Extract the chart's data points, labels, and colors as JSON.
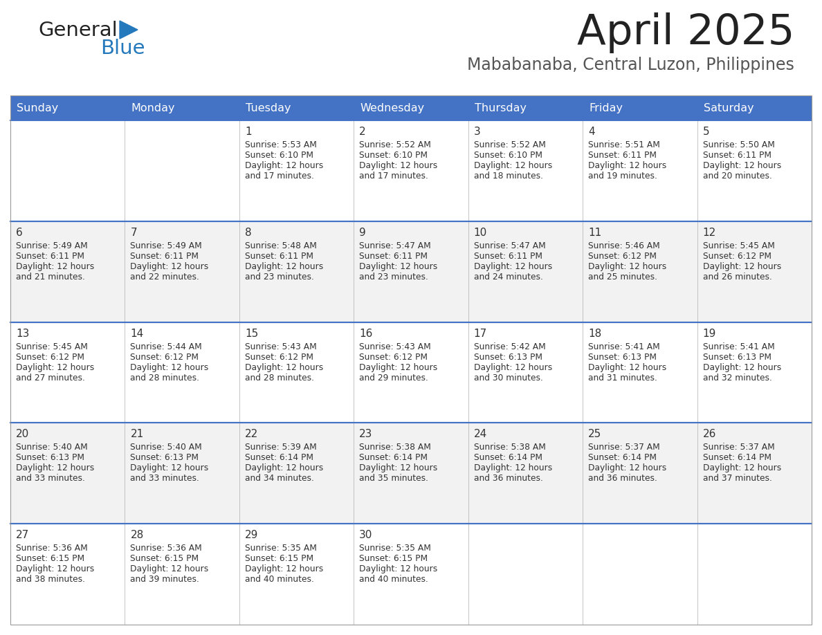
{
  "title": "April 2025",
  "subtitle": "Mababanaba, Central Luzon, Philippines",
  "header_bg": "#4472C4",
  "header_text_color": "#FFFFFF",
  "weekdays": [
    "Sunday",
    "Monday",
    "Tuesday",
    "Wednesday",
    "Thursday",
    "Friday",
    "Saturday"
  ],
  "row_bg_even": "#FFFFFF",
  "row_bg_odd": "#F2F2F2",
  "cell_text_color": "#333333",
  "divider_color": "#4472C4",
  "calendar_data": [
    [
      {
        "day": "",
        "sunrise": "",
        "sunset": "",
        "daylight": ""
      },
      {
        "day": "",
        "sunrise": "",
        "sunset": "",
        "daylight": ""
      },
      {
        "day": "1",
        "sunrise": "Sunrise: 5:53 AM",
        "sunset": "Sunset: 6:10 PM",
        "daylight": "Daylight: 12 hours\nand 17 minutes."
      },
      {
        "day": "2",
        "sunrise": "Sunrise: 5:52 AM",
        "sunset": "Sunset: 6:10 PM",
        "daylight": "Daylight: 12 hours\nand 17 minutes."
      },
      {
        "day": "3",
        "sunrise": "Sunrise: 5:52 AM",
        "sunset": "Sunset: 6:10 PM",
        "daylight": "Daylight: 12 hours\nand 18 minutes."
      },
      {
        "day": "4",
        "sunrise": "Sunrise: 5:51 AM",
        "sunset": "Sunset: 6:11 PM",
        "daylight": "Daylight: 12 hours\nand 19 minutes."
      },
      {
        "day": "5",
        "sunrise": "Sunrise: 5:50 AM",
        "sunset": "Sunset: 6:11 PM",
        "daylight": "Daylight: 12 hours\nand 20 minutes."
      }
    ],
    [
      {
        "day": "6",
        "sunrise": "Sunrise: 5:49 AM",
        "sunset": "Sunset: 6:11 PM",
        "daylight": "Daylight: 12 hours\nand 21 minutes."
      },
      {
        "day": "7",
        "sunrise": "Sunrise: 5:49 AM",
        "sunset": "Sunset: 6:11 PM",
        "daylight": "Daylight: 12 hours\nand 22 minutes."
      },
      {
        "day": "8",
        "sunrise": "Sunrise: 5:48 AM",
        "sunset": "Sunset: 6:11 PM",
        "daylight": "Daylight: 12 hours\nand 23 minutes."
      },
      {
        "day": "9",
        "sunrise": "Sunrise: 5:47 AM",
        "sunset": "Sunset: 6:11 PM",
        "daylight": "Daylight: 12 hours\nand 23 minutes."
      },
      {
        "day": "10",
        "sunrise": "Sunrise: 5:47 AM",
        "sunset": "Sunset: 6:11 PM",
        "daylight": "Daylight: 12 hours\nand 24 minutes."
      },
      {
        "day": "11",
        "sunrise": "Sunrise: 5:46 AM",
        "sunset": "Sunset: 6:12 PM",
        "daylight": "Daylight: 12 hours\nand 25 minutes."
      },
      {
        "day": "12",
        "sunrise": "Sunrise: 5:45 AM",
        "sunset": "Sunset: 6:12 PM",
        "daylight": "Daylight: 12 hours\nand 26 minutes."
      }
    ],
    [
      {
        "day": "13",
        "sunrise": "Sunrise: 5:45 AM",
        "sunset": "Sunset: 6:12 PM",
        "daylight": "Daylight: 12 hours\nand 27 minutes."
      },
      {
        "day": "14",
        "sunrise": "Sunrise: 5:44 AM",
        "sunset": "Sunset: 6:12 PM",
        "daylight": "Daylight: 12 hours\nand 28 minutes."
      },
      {
        "day": "15",
        "sunrise": "Sunrise: 5:43 AM",
        "sunset": "Sunset: 6:12 PM",
        "daylight": "Daylight: 12 hours\nand 28 minutes."
      },
      {
        "day": "16",
        "sunrise": "Sunrise: 5:43 AM",
        "sunset": "Sunset: 6:12 PM",
        "daylight": "Daylight: 12 hours\nand 29 minutes."
      },
      {
        "day": "17",
        "sunrise": "Sunrise: 5:42 AM",
        "sunset": "Sunset: 6:13 PM",
        "daylight": "Daylight: 12 hours\nand 30 minutes."
      },
      {
        "day": "18",
        "sunrise": "Sunrise: 5:41 AM",
        "sunset": "Sunset: 6:13 PM",
        "daylight": "Daylight: 12 hours\nand 31 minutes."
      },
      {
        "day": "19",
        "sunrise": "Sunrise: 5:41 AM",
        "sunset": "Sunset: 6:13 PM",
        "daylight": "Daylight: 12 hours\nand 32 minutes."
      }
    ],
    [
      {
        "day": "20",
        "sunrise": "Sunrise: 5:40 AM",
        "sunset": "Sunset: 6:13 PM",
        "daylight": "Daylight: 12 hours\nand 33 minutes."
      },
      {
        "day": "21",
        "sunrise": "Sunrise: 5:40 AM",
        "sunset": "Sunset: 6:13 PM",
        "daylight": "Daylight: 12 hours\nand 33 minutes."
      },
      {
        "day": "22",
        "sunrise": "Sunrise: 5:39 AM",
        "sunset": "Sunset: 6:14 PM",
        "daylight": "Daylight: 12 hours\nand 34 minutes."
      },
      {
        "day": "23",
        "sunrise": "Sunrise: 5:38 AM",
        "sunset": "Sunset: 6:14 PM",
        "daylight": "Daylight: 12 hours\nand 35 minutes."
      },
      {
        "day": "24",
        "sunrise": "Sunrise: 5:38 AM",
        "sunset": "Sunset: 6:14 PM",
        "daylight": "Daylight: 12 hours\nand 36 minutes."
      },
      {
        "day": "25",
        "sunrise": "Sunrise: 5:37 AM",
        "sunset": "Sunset: 6:14 PM",
        "daylight": "Daylight: 12 hours\nand 36 minutes."
      },
      {
        "day": "26",
        "sunrise": "Sunrise: 5:37 AM",
        "sunset": "Sunset: 6:14 PM",
        "daylight": "Daylight: 12 hours\nand 37 minutes."
      }
    ],
    [
      {
        "day": "27",
        "sunrise": "Sunrise: 5:36 AM",
        "sunset": "Sunset: 6:15 PM",
        "daylight": "Daylight: 12 hours\nand 38 minutes."
      },
      {
        "day": "28",
        "sunrise": "Sunrise: 5:36 AM",
        "sunset": "Sunset: 6:15 PM",
        "daylight": "Daylight: 12 hours\nand 39 minutes."
      },
      {
        "day": "29",
        "sunrise": "Sunrise: 5:35 AM",
        "sunset": "Sunset: 6:15 PM",
        "daylight": "Daylight: 12 hours\nand 40 minutes."
      },
      {
        "day": "30",
        "sunrise": "Sunrise: 5:35 AM",
        "sunset": "Sunset: 6:15 PM",
        "daylight": "Daylight: 12 hours\nand 40 minutes."
      },
      {
        "day": "",
        "sunrise": "",
        "sunset": "",
        "daylight": ""
      },
      {
        "day": "",
        "sunrise": "",
        "sunset": "",
        "daylight": ""
      },
      {
        "day": "",
        "sunrise": "",
        "sunset": "",
        "daylight": ""
      }
    ]
  ],
  "logo_general_color": "#222222",
  "logo_blue_color": "#2479BD",
  "logo_triangle_color": "#2479BD",
  "title_color": "#222222",
  "subtitle_color": "#555555"
}
